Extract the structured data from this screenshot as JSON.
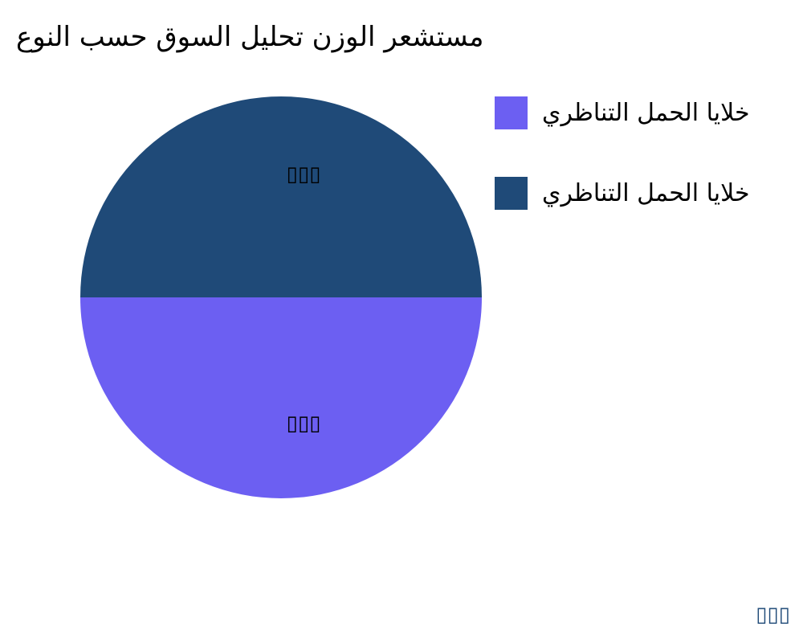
{
  "chart_data": {
    "type": "pie",
    "title": "مستشعر الوزن تحليل السوق حسب النوع",
    "series": [
      {
        "name": "خلايا الحمل التناظري",
        "value": 50,
        "label": "▯▯▯",
        "color": "#6c5ff2"
      },
      {
        "name": "خلايا الحمل التناظري",
        "value": 50,
        "label": "▯▯▯",
        "color": "#1f4a78"
      }
    ],
    "legend_position": "right"
  },
  "watermark": "▯▯▯"
}
